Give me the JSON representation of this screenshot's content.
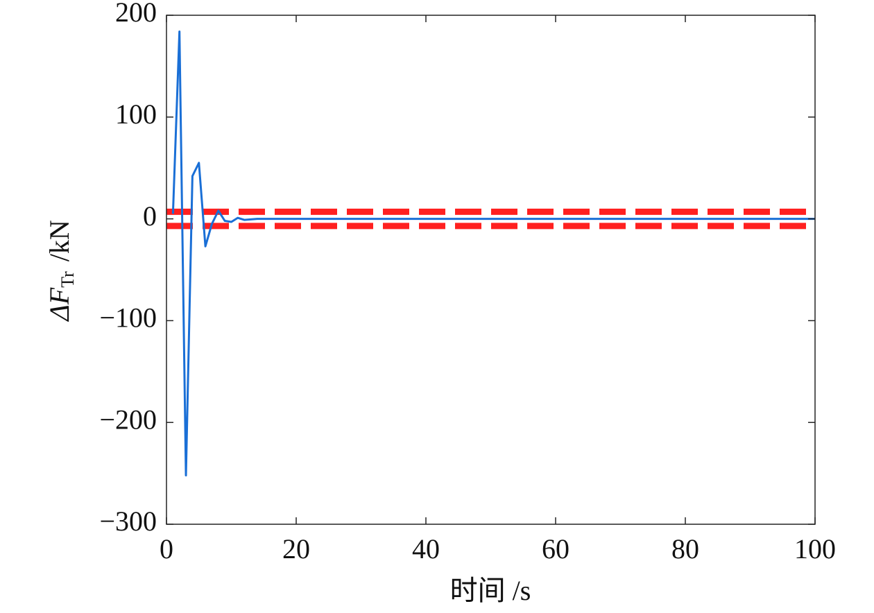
{
  "chart_data": {
    "type": "line",
    "x_label": "时间 /s",
    "y_label": {
      "main": "ΔF",
      "sub": "Tr",
      "unit": "/kN"
    },
    "x": [
      1,
      2,
      3,
      4,
      5,
      6,
      7,
      8,
      9,
      10,
      11,
      12,
      14,
      20,
      40,
      60,
      80,
      100
    ],
    "series": [
      {
        "color": "#1a6fd6",
        "values": [
          5,
          184,
          -252,
          42,
          55,
          -27,
          -5,
          8,
          -2,
          -3,
          1,
          -1,
          0,
          0,
          0,
          0,
          0,
          0
        ]
      }
    ],
    "reference_lines": [
      {
        "value": 7,
        "color": "#ff2020"
      },
      {
        "value": -7,
        "color": "#ff2020"
      }
    ],
    "xlim": [
      0,
      100
    ],
    "xticks": [
      0,
      20,
      40,
      60,
      80,
      100
    ],
    "ylim": [
      -300,
      200
    ],
    "yticks": [
      -300,
      -200,
      -100,
      0,
      100,
      200
    ],
    "grid": false
  }
}
